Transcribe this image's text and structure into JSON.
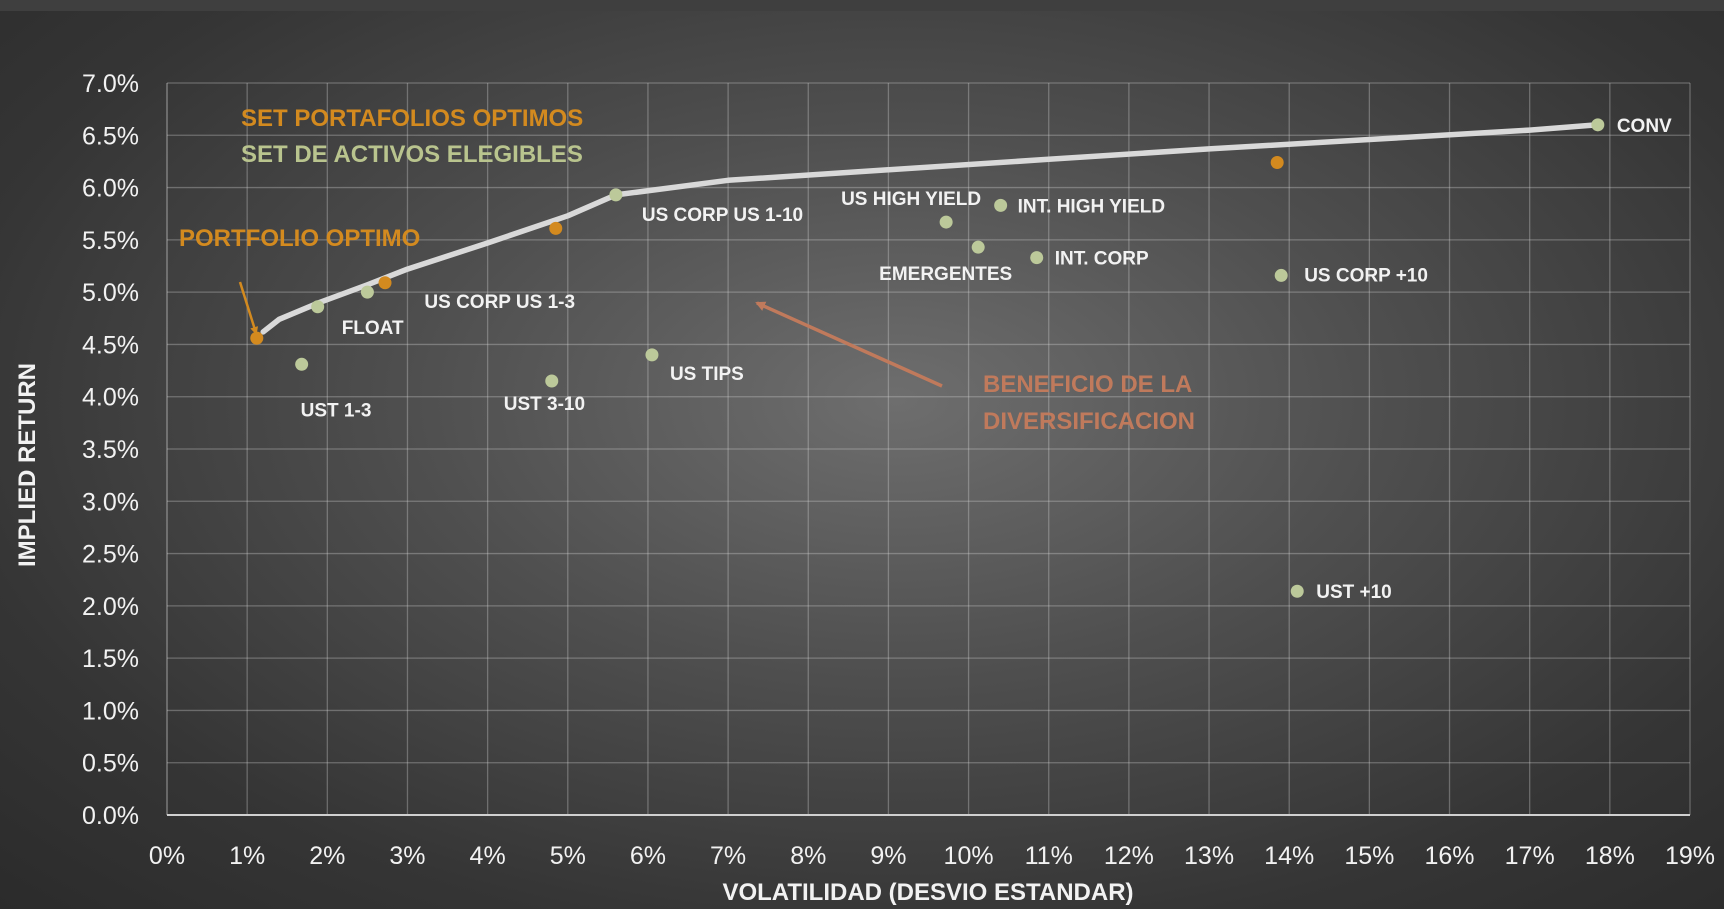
{
  "chart_data": {
    "type": "scatter",
    "xlabel": "VOLATILIDAD (DESVIO ESTANDAR)",
    "ylabel": "IMPLIED RETURN",
    "xlim": [
      0,
      19
    ],
    "ylim": [
      0,
      7
    ],
    "x_ticks": [
      "0%",
      "1%",
      "2%",
      "3%",
      "4%",
      "5%",
      "6%",
      "7%",
      "8%",
      "9%",
      "10%",
      "11%",
      "12%",
      "13%",
      "14%",
      "15%",
      "16%",
      "17%",
      "18%",
      "19%"
    ],
    "y_ticks": [
      "0.0%",
      "0.5%",
      "1.0%",
      "1.5%",
      "2.0%",
      "2.5%",
      "3.0%",
      "3.5%",
      "4.0%",
      "4.5%",
      "5.0%",
      "5.5%",
      "6.0%",
      "6.5%",
      "7.0%"
    ],
    "grid": true,
    "colors": {
      "optimal": "#d38a1f",
      "assets": "#bcc99a",
      "frontier": "#d9d9d9",
      "benefit": "#c07a5c",
      "optimo_text": "#d38a1f",
      "elegibles_text": "#b9c48e"
    },
    "legend": {
      "optimal_label": "SET PORTAFOLIOS OPTIMOS",
      "assets_label": "SET DE ACTIVOS ELEGIBLES"
    },
    "annotations": {
      "optimo": "PORTFOLIO OPTIMO",
      "benefit_line1": "BENEFICIO DE LA",
      "benefit_line2": "DIVERSIFICACION"
    },
    "frontier": [
      {
        "x": 1.2,
        "y": 4.62
      },
      {
        "x": 1.4,
        "y": 4.74
      },
      {
        "x": 1.9,
        "y": 4.9
      },
      {
        "x": 2.5,
        "y": 5.07
      },
      {
        "x": 3.0,
        "y": 5.22
      },
      {
        "x": 4.0,
        "y": 5.47
      },
      {
        "x": 5.0,
        "y": 5.73
      },
      {
        "x": 5.6,
        "y": 5.93
      },
      {
        "x": 7.0,
        "y": 6.07
      },
      {
        "x": 9.0,
        "y": 6.17
      },
      {
        "x": 11.0,
        "y": 6.27
      },
      {
        "x": 13.0,
        "y": 6.37
      },
      {
        "x": 15.0,
        "y": 6.46
      },
      {
        "x": 17.0,
        "y": 6.55
      },
      {
        "x": 17.85,
        "y": 6.6
      }
    ],
    "series": [
      {
        "group": "optimal",
        "points": [
          {
            "x": 1.12,
            "y": 4.56
          },
          {
            "x": 2.72,
            "y": 5.09
          },
          {
            "x": 4.85,
            "y": 5.61
          },
          {
            "x": 13.85,
            "y": 6.24
          }
        ]
      },
      {
        "group": "assets",
        "points": [
          {
            "x": 17.85,
            "y": 6.6,
            "label": "CONV"
          },
          {
            "x": 5.6,
            "y": 5.93,
            "label": "US CORP US 1-10"
          },
          {
            "x": 10.4,
            "y": 5.83,
            "label": "INT. HIGH YIELD"
          },
          {
            "x": 9.72,
            "y": 5.67,
            "label": "US HIGH YIELD"
          },
          {
            "x": 10.12,
            "y": 5.43,
            "label": "EMERGENTES"
          },
          {
            "x": 10.85,
            "y": 5.33,
            "label": "INT. CORP"
          },
          {
            "x": 13.9,
            "y": 5.16,
            "label": "US CORP +10"
          },
          {
            "x": 2.5,
            "y": 5.0,
            "label": "US CORP US 1-3"
          },
          {
            "x": 1.88,
            "y": 4.86,
            "label": "FLOAT"
          },
          {
            "x": 6.05,
            "y": 4.4,
            "label": "US TIPS"
          },
          {
            "x": 1.68,
            "y": 4.31,
            "label": "UST 1-3"
          },
          {
            "x": 4.8,
            "y": 4.15,
            "label": "UST 3-10"
          },
          {
            "x": 14.1,
            "y": 2.14,
            "label": "UST +10"
          }
        ]
      }
    ]
  }
}
